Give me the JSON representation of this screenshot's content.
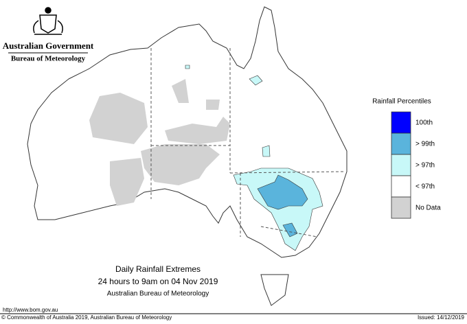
{
  "header": {
    "government": "Australian Government",
    "bureau": "Bureau of Meteorology"
  },
  "legend": {
    "title": "Rainfall Percentiles",
    "items": [
      {
        "label": "100th",
        "color": "#0000ff"
      },
      {
        "label": "> 99th",
        "color": "#5ab4dc"
      },
      {
        "label": "> 97th",
        "color": "#c8f8f8"
      },
      {
        "label": "< 97th",
        "color": "#ffffff"
      },
      {
        "label": "No Data",
        "color": "#d2d2d2"
      }
    ]
  },
  "caption": {
    "title": "Daily Rainfall Extremes",
    "period": "24 hours to 9am on 04 Nov 2019",
    "source": "Australian Bureau of Meteorology"
  },
  "footer": {
    "url": "http://www.bom.gov.au",
    "copyright": "© Commonwealth of Australia 2019, Australian Bureau of Meteorology",
    "issued": "Issued: 14/12/2019"
  }
}
